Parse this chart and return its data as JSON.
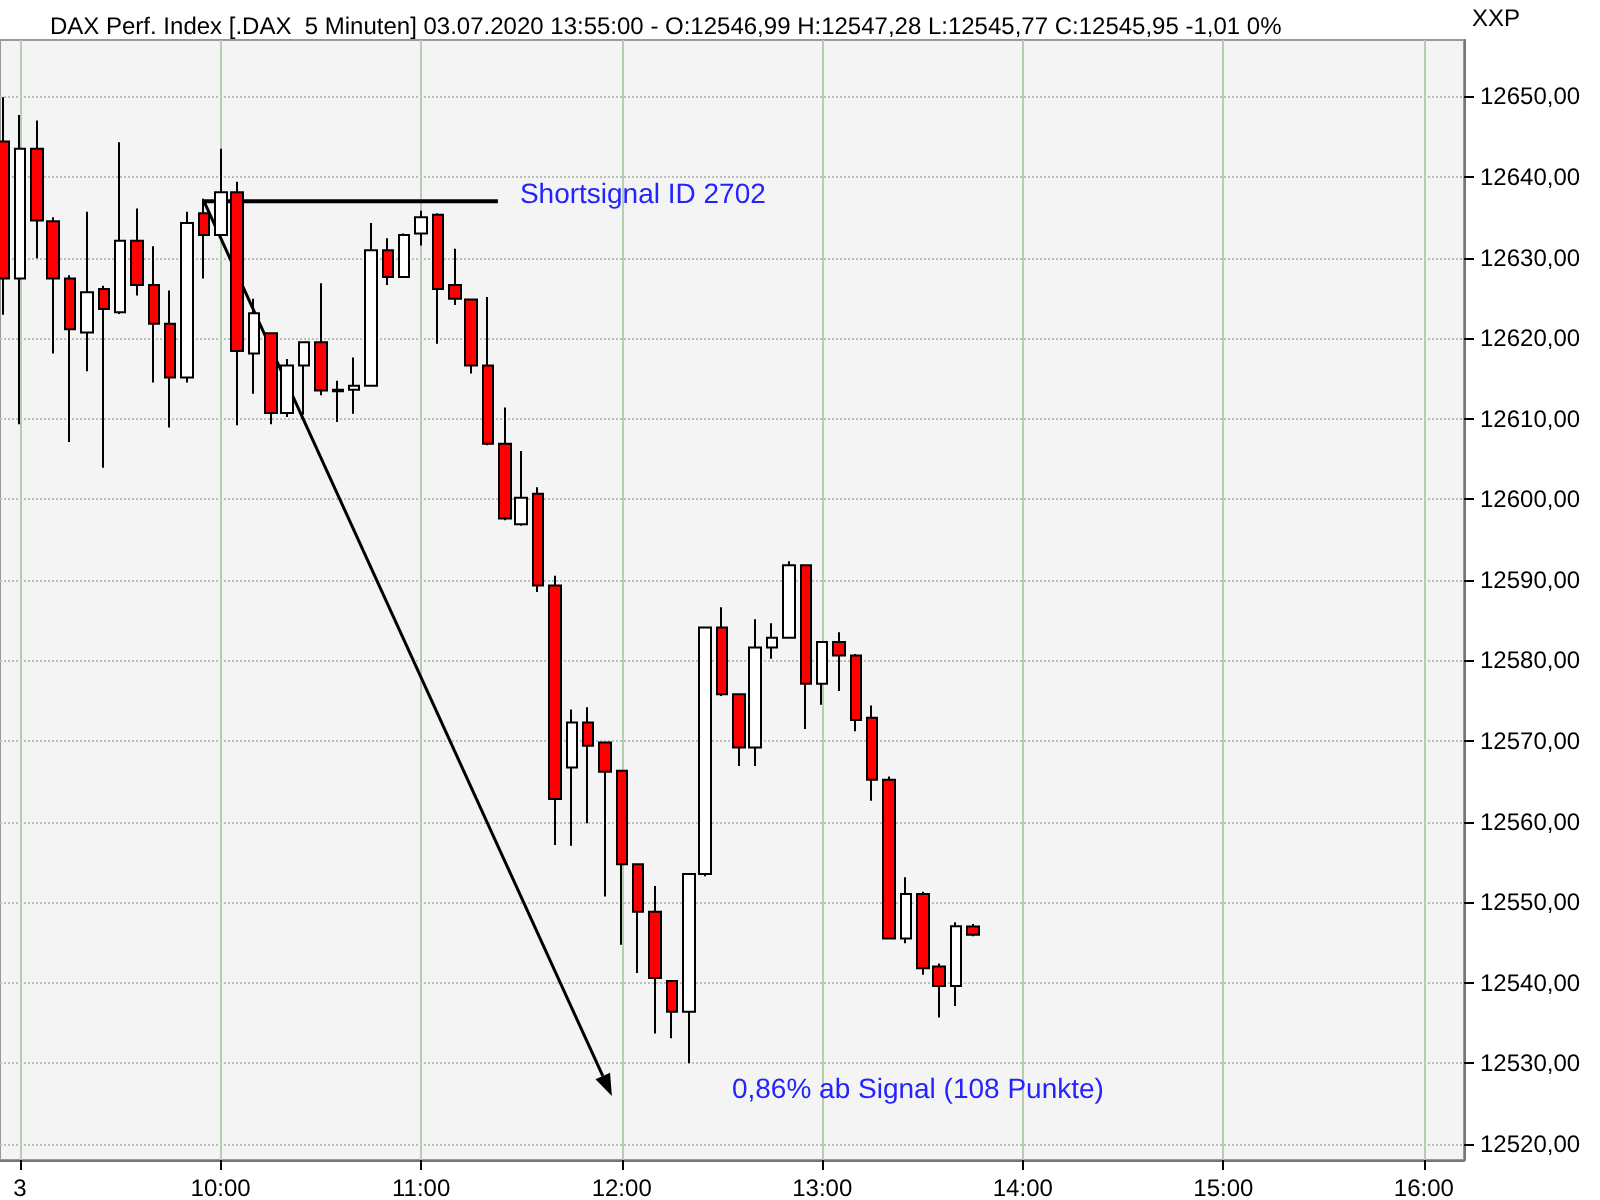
{
  "chart_data": {
    "type": "candlestick",
    "title": "DAX Perf. Index [.DAX  5 Minuten] 03.07.2020 13:55:00 - O:12546,99 H:12547,28 L:12545,77 C:12545,95 -1,01 0%",
    "x": [
      "2020-07-03T08:55",
      "2020-07-03T09:00",
      "2020-07-03T09:05",
      "2020-07-03T09:10",
      "2020-07-03T09:15",
      "2020-07-03T09:20",
      "2020-07-03T09:25",
      "2020-07-03T09:30",
      "2020-07-03T09:35",
      "2020-07-03T09:40",
      "2020-07-03T09:45",
      "2020-07-03T09:50",
      "2020-07-03T09:55",
      "2020-07-03T10:00",
      "2020-07-03T10:05",
      "2020-07-03T10:10",
      "2020-07-03T10:15",
      "2020-07-03T10:20",
      "2020-07-03T10:25",
      "2020-07-03T10:30",
      "2020-07-03T10:35",
      "2020-07-03T10:40",
      "2020-07-03T10:45",
      "2020-07-03T10:50",
      "2020-07-03T10:55",
      "2020-07-03T11:00",
      "2020-07-03T11:05",
      "2020-07-03T11:10",
      "2020-07-03T11:15",
      "2020-07-03T11:20",
      "2020-07-03T11:25",
      "2020-07-03T11:30",
      "2020-07-03T11:35",
      "2020-07-03T11:40",
      "2020-07-03T11:45",
      "2020-07-03T11:50",
      "2020-07-03T11:55",
      "2020-07-03T12:00",
      "2020-07-03T12:05",
      "2020-07-03T12:10",
      "2020-07-03T12:15",
      "2020-07-03T12:20",
      "2020-07-03T12:25",
      "2020-07-03T12:30",
      "2020-07-03T12:35",
      "2020-07-03T12:40",
      "2020-07-03T12:45",
      "2020-07-03T12:50",
      "2020-07-03T12:55",
      "2020-07-03T13:00",
      "2020-07-03T13:05",
      "2020-07-03T13:10",
      "2020-07-03T13:15",
      "2020-07-03T13:20",
      "2020-07-03T13:25",
      "2020-07-03T13:30",
      "2020-07-03T13:35",
      "2020-07-03T13:40",
      "2020-07-03T13:45"
    ],
    "ohlc": [
      [
        12644.4,
        12649.9,
        12622.9,
        12627.4
      ],
      [
        12627.4,
        12647.7,
        12609.3,
        12643.5
      ],
      [
        12643.5,
        12647.0,
        12629.9,
        12634.6
      ],
      [
        12634.5,
        12635.0,
        12618.1,
        12627.4
      ],
      [
        12627.4,
        12627.8,
        12607.1,
        12621.1
      ],
      [
        12620.7,
        12635.7,
        12615.9,
        12625.7
      ],
      [
        12626.1,
        12626.5,
        12603.9,
        12623.6
      ],
      [
        12623.2,
        12644.3,
        12623.0,
        12632.1
      ],
      [
        12632.1,
        12636.1,
        12625.3,
        12626.6
      ],
      [
        12626.6,
        12631.4,
        12614.5,
        12621.8
      ],
      [
        12621.8,
        12625.9,
        12608.9,
        12615.1
      ],
      [
        12615.1,
        12635.7,
        12614.5,
        12634.3
      ],
      [
        12635.5,
        12637.3,
        12627.4,
        12632.8
      ],
      [
        12632.8,
        12643.5,
        12632.8,
        12638.1
      ],
      [
        12638.1,
        12639.4,
        12609.2,
        12618.4
      ],
      [
        12618.1,
        12624.9,
        12613.1,
        12623.1
      ],
      [
        12620.6,
        12620.6,
        12609.3,
        12610.7
      ],
      [
        12610.7,
        12617.4,
        12610.2,
        12616.6
      ],
      [
        12616.6,
        12619.5,
        12610.5,
        12619.5
      ],
      [
        12619.5,
        12626.8,
        12612.9,
        12613.5
      ],
      [
        12613.6,
        12614.7,
        12609.6,
        12613.4
      ],
      [
        12613.6,
        12617.6,
        12610.6,
        12614.1
      ],
      [
        12614.1,
        12634.3,
        12614.0,
        12630.9
      ],
      [
        12630.9,
        12632.4,
        12626.6,
        12627.6
      ],
      [
        12627.6,
        12633.0,
        12627.6,
        12632.8
      ],
      [
        12633.0,
        12635.8,
        12631.5,
        12635.0
      ],
      [
        12635.3,
        12635.5,
        12619.3,
        12626.1
      ],
      [
        12626.6,
        12631.1,
        12624.1,
        12624.9
      ],
      [
        12624.8,
        12624.8,
        12615.6,
        12616.6
      ],
      [
        12616.6,
        12625.1,
        12606.7,
        12606.9
      ],
      [
        12606.9,
        12611.4,
        12597.4,
        12597.6
      ],
      [
        12596.9,
        12606.0,
        12596.7,
        12600.2
      ],
      [
        12600.7,
        12601.5,
        12588.5,
        12589.3
      ],
      [
        12589.3,
        12590.5,
        12557.1,
        12562.8
      ],
      [
        12566.7,
        12573.9,
        12557.0,
        12572.3
      ],
      [
        12572.3,
        12574.2,
        12559.8,
        12569.4
      ],
      [
        12569.8,
        12569.8,
        12550.7,
        12566.2
      ],
      [
        12566.3,
        12566.3,
        12544.7,
        12554.7
      ],
      [
        12554.7,
        12554.7,
        12541.2,
        12548.8
      ],
      [
        12548.8,
        12552.0,
        12533.7,
        12540.6
      ],
      [
        12540.2,
        12540.2,
        12533.1,
        12536.4
      ],
      [
        12536.4,
        12553.5,
        12530.0,
        12553.5
      ],
      [
        12553.5,
        12584.1,
        12553.2,
        12584.1
      ],
      [
        12584.1,
        12586.6,
        12575.6,
        12575.8
      ],
      [
        12575.8,
        12575.8,
        12566.9,
        12569.2
      ],
      [
        12569.2,
        12585.1,
        12566.9,
        12581.6
      ],
      [
        12581.6,
        12584.6,
        12580.2,
        12582.8
      ],
      [
        12582.8,
        12592.3,
        12582.8,
        12591.8
      ],
      [
        12591.8,
        12591.8,
        12571.5,
        12577.1
      ],
      [
        12577.1,
        12582.3,
        12574.5,
        12582.3
      ],
      [
        12582.3,
        12583.5,
        12576.2,
        12580.6
      ],
      [
        12580.6,
        12580.8,
        12571.2,
        12572.6
      ],
      [
        12572.9,
        12574.4,
        12562.6,
        12565.2
      ],
      [
        12565.2,
        12565.6,
        12545.5,
        12545.5
      ],
      [
        12545.5,
        12553.1,
        12544.9,
        12551.0
      ],
      [
        12551.0,
        12551.3,
        12541.0,
        12541.8
      ],
      [
        12542.0,
        12542.4,
        12535.7,
        12539.6
      ],
      [
        12539.6,
        12547.5,
        12537.1,
        12547.0
      ],
      [
        12546.99,
        12547.28,
        12545.77,
        12545.95
      ]
    ],
    "xlim": [
      "2020-07-03T08:54",
      "2020-07-03T16:12"
    ],
    "xticks": [
      {
        "value": "2020-07-03T09:00",
        "label": "3"
      },
      {
        "value": "2020-07-03T10:00",
        "label": "10:00"
      },
      {
        "value": "2020-07-03T11:00",
        "label": "11:00"
      },
      {
        "value": "2020-07-03T12:00",
        "label": "12:00"
      },
      {
        "value": "2020-07-03T13:00",
        "label": "13:00"
      },
      {
        "value": "2020-07-03T14:00",
        "label": "14:00"
      },
      {
        "value": "2020-07-03T15:00",
        "label": "15:00"
      },
      {
        "value": "2020-07-03T16:00",
        "label": "16:00"
      }
    ],
    "ylim": [
      12518,
      12657
    ],
    "yticks": [
      {
        "value": 12520,
        "label": "12520,00"
      },
      {
        "value": 12530,
        "label": "12530,00"
      },
      {
        "value": 12540,
        "label": "12540,00"
      },
      {
        "value": 12550,
        "label": "12550,00"
      },
      {
        "value": 12560,
        "label": "12560,00"
      },
      {
        "value": 12570,
        "label": "12570,00"
      },
      {
        "value": 12580,
        "label": "12580,00"
      },
      {
        "value": 12590,
        "label": "12590,00"
      },
      {
        "value": 12600,
        "label": "12600,00"
      },
      {
        "value": 12610,
        "label": "12610,00"
      },
      {
        "value": 12620,
        "label": "12620,00"
      },
      {
        "value": 12630,
        "label": "12630,00"
      },
      {
        "value": 12640,
        "label": "12640,00"
      },
      {
        "value": 12650,
        "label": "12650,00"
      }
    ],
    "grid": true,
    "annotations": [
      {
        "text": "Shortsignal ID 2702",
        "x": "2020-07-03T09:55",
        "y": 12637
      },
      "0,86% ab Signal (108 Punkte)",
      "XXP"
    ]
  }
}
